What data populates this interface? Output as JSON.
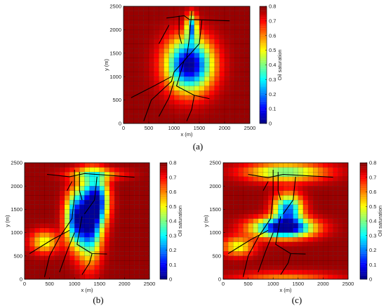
{
  "chart_data": [
    {
      "id": "a",
      "type": "heatmap",
      "caption": "(a)",
      "xlabel": "x (m)",
      "ylabel": "y (m)",
      "colorbar_label": "Oil saturation",
      "xlim": [
        0,
        2500
      ],
      "ylim": [
        0,
        2500
      ],
      "xticks": [
        0,
        500,
        1000,
        1500,
        2000,
        2500
      ],
      "yticks": [
        0,
        500,
        1000,
        1500,
        2000,
        2500
      ],
      "clim": [
        0,
        0.8
      ],
      "cticks": [
        0,
        0.1,
        0.2,
        0.3,
        0.4,
        0.5,
        0.6,
        0.7,
        0.8
      ],
      "grid_cells": [
        25,
        25
      ],
      "colormap": "jet",
      "field": {
        "background": 0.78,
        "blobs": [
          {
            "cx": 1300,
            "cy": 1250,
            "rx": 560,
            "ry": 700,
            "depth": 0.78
          },
          {
            "cx": 1350,
            "cy": 2050,
            "rx": 130,
            "ry": 350,
            "depth": 0.5
          }
        ]
      },
      "fractures": [
        [
          [
            850,
            2250
          ],
          [
            1200,
            2300
          ],
          [
            1300,
            2220
          ],
          [
            2100,
            2190
          ]
        ],
        [
          [
            1350,
            2400
          ],
          [
            1300,
            1800
          ],
          [
            1250,
            1400
          ],
          [
            1000,
            1100
          ],
          [
            950,
            900
          ],
          [
            800,
            750
          ],
          [
            550,
            500
          ],
          [
            400,
            50
          ]
        ],
        [
          [
            700,
            1700
          ],
          [
            900,
            2100
          ]
        ],
        [
          [
            1100,
            2300
          ],
          [
            1100,
            1900
          ],
          [
            1150,
            1700
          ]
        ],
        [
          [
            1550,
            2200
          ],
          [
            1500,
            1700
          ],
          [
            1250,
            1400
          ]
        ],
        [
          [
            150,
            550
          ],
          [
            600,
            800
          ],
          [
            950,
            1000
          ]
        ],
        [
          [
            1200,
            1350
          ],
          [
            1050,
            800
          ],
          [
            1400,
            600
          ],
          [
            1700,
            530
          ]
        ],
        [
          [
            1250,
            50
          ],
          [
            1350,
            300
          ],
          [
            1400,
            600
          ]
        ],
        [
          [
            1000,
            900
          ],
          [
            900,
            550
          ],
          [
            700,
            150
          ]
        ]
      ]
    },
    {
      "id": "b",
      "type": "heatmap",
      "caption": "(b)",
      "xlabel": "x (m)",
      "ylabel": "y (m)",
      "colorbar_label": "Oil saturation",
      "xlim": [
        0,
        2500
      ],
      "ylim": [
        0,
        2500
      ],
      "xticks": [
        0,
        500,
        1000,
        1500,
        2000,
        2500
      ],
      "yticks": [
        0,
        500,
        1000,
        1500,
        2000,
        2500
      ],
      "clim": [
        0,
        0.8
      ],
      "cticks": [
        0,
        0.1,
        0.2,
        0.3,
        0.4,
        0.5,
        0.6,
        0.7,
        0.8
      ],
      "grid_cells": [
        25,
        25
      ],
      "colormap": "jet",
      "field": {
        "background": 0.78,
        "blobs": [
          {
            "cx": 1300,
            "cy": 1300,
            "rx": 300,
            "ry": 1000,
            "depth": 0.78
          },
          {
            "cx": 1000,
            "cy": 1300,
            "rx": 250,
            "ry": 700,
            "depth": 0.55
          },
          {
            "cx": 1500,
            "cy": 1700,
            "rx": 250,
            "ry": 600,
            "depth": 0.45
          },
          {
            "cx": 1400,
            "cy": 2250,
            "rx": 700,
            "ry": 150,
            "depth": 0.25
          },
          {
            "cx": 400,
            "cy": 800,
            "rx": 350,
            "ry": 300,
            "depth": 0.3
          }
        ]
      },
      "fractures": [
        [
          [
            450,
            2250
          ],
          [
            900,
            2200
          ],
          [
            1200,
            2270
          ],
          [
            2200,
            2190
          ]
        ],
        [
          [
            1000,
            2350
          ],
          [
            1000,
            1800
          ],
          [
            950,
            1300
          ],
          [
            700,
            900
          ],
          [
            500,
            500
          ],
          [
            400,
            50
          ]
        ],
        [
          [
            850,
            1900
          ],
          [
            950,
            2100
          ]
        ],
        [
          [
            1100,
            2300
          ],
          [
            1100,
            1900
          ],
          [
            1150,
            1700
          ]
        ],
        [
          [
            1450,
            2200
          ],
          [
            1400,
            1700
          ],
          [
            1200,
            1400
          ]
        ],
        [
          [
            100,
            550
          ],
          [
            550,
            850
          ],
          [
            900,
            1050
          ]
        ],
        [
          [
            1150,
            1350
          ],
          [
            1050,
            750
          ],
          [
            1350,
            550
          ],
          [
            1650,
            540
          ]
        ],
        [
          [
            1150,
            100
          ],
          [
            1300,
            350
          ],
          [
            1350,
            550
          ]
        ],
        [
          [
            1000,
            1000
          ],
          [
            850,
            600
          ],
          [
            700,
            150
          ]
        ]
      ]
    },
    {
      "id": "c",
      "type": "heatmap",
      "caption": "(c)",
      "xlabel": "x (m)",
      "ylabel": "y (m)",
      "colorbar_label": "Oil saturation",
      "xlim": [
        0,
        2500
      ],
      "ylim": [
        0,
        2500
      ],
      "xticks": [
        0,
        500,
        1000,
        1500,
        2000,
        2500
      ],
      "yticks": [
        0,
        500,
        1000,
        1500,
        2000,
        2500
      ],
      "clim": [
        0,
        0.8
      ],
      "cticks": [
        0,
        0.1,
        0.2,
        0.3,
        0.4,
        0.5,
        0.6,
        0.7,
        0.8
      ],
      "grid_cells": [
        25,
        25
      ],
      "colormap": "jet",
      "field": {
        "background": 0.78,
        "blobs": [
          {
            "cx": 1200,
            "cy": 1100,
            "rx": 750,
            "ry": 260,
            "depth": 0.78
          },
          {
            "cx": 1300,
            "cy": 1500,
            "rx": 350,
            "ry": 400,
            "depth": 0.6
          },
          {
            "cx": 1250,
            "cy": 2300,
            "rx": 1000,
            "ry": 250,
            "depth": 0.4
          },
          {
            "cx": 300,
            "cy": 700,
            "rx": 400,
            "ry": 250,
            "depth": 0.3
          },
          {
            "cx": 1250,
            "cy": 0,
            "rx": 1300,
            "ry": 200,
            "depth": 0.2
          }
        ]
      },
      "fractures": [
        [
          [
            500,
            2250
          ],
          [
            900,
            2180
          ],
          [
            1200,
            2250
          ],
          [
            2200,
            2190
          ]
        ],
        [
          [
            1000,
            2350
          ],
          [
            1000,
            1800
          ],
          [
            950,
            1300
          ],
          [
            700,
            900
          ],
          [
            500,
            500
          ],
          [
            400,
            50
          ]
        ],
        [
          [
            800,
            1900
          ],
          [
            900,
            2100
          ]
        ],
        [
          [
            1100,
            2300
          ],
          [
            1100,
            1900
          ],
          [
            1150,
            1700
          ]
        ],
        [
          [
            1450,
            2200
          ],
          [
            1400,
            1700
          ],
          [
            1200,
            1400
          ]
        ],
        [
          [
            100,
            550
          ],
          [
            550,
            850
          ],
          [
            900,
            1050
          ]
        ],
        [
          [
            1150,
            1350
          ],
          [
            1050,
            750
          ],
          [
            1350,
            550
          ],
          [
            1650,
            540
          ]
        ],
        [
          [
            1150,
            100
          ],
          [
            1300,
            350
          ],
          [
            1350,
            550
          ]
        ],
        [
          [
            1000,
            1000
          ],
          [
            850,
            600
          ],
          [
            700,
            150
          ]
        ]
      ]
    }
  ]
}
